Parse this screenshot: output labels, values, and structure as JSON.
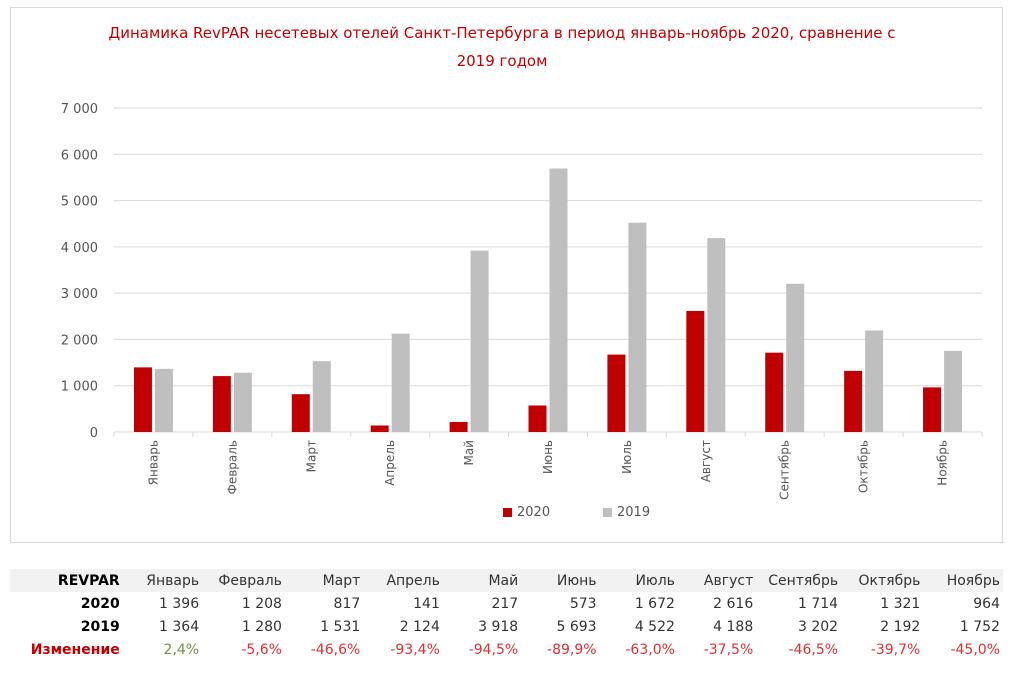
{
  "chart_data": {
    "type": "bar",
    "title": "Динамика RevPAR несетевых отелей Санкт-Петербурга в период январь-ноябрь 2020, сравнение с 2019 годом",
    "title_lines": [
      "Динамика RevPAR несетевых отелей Санкт-Петербурга в период январь-ноябрь 2020, сравнение с",
      "2019 годом"
    ],
    "categories": [
      "Январь",
      "Февраль",
      "Март",
      "Апрель",
      "Май",
      "Июнь",
      "Июль",
      "Август",
      "Сентябрь",
      "Октябрь",
      "Ноябрь"
    ],
    "series": [
      {
        "name": "2020",
        "color": "#c00000",
        "values": [
          1396,
          1208,
          817,
          141,
          217,
          573,
          1672,
          2616,
          1714,
          1321,
          964
        ]
      },
      {
        "name": "2019",
        "color": "#bfbfbf",
        "values": [
          1364,
          1280,
          1531,
          2124,
          3918,
          5693,
          4522,
          4188,
          3202,
          2192,
          1752
        ]
      }
    ],
    "ylim": [
      0,
      7000
    ],
    "yticks": [
      "0",
      "1 000",
      "2 000",
      "3 000",
      "4 000",
      "5 000",
      "6 000",
      "7 000"
    ],
    "grid": true,
    "legend_position": "bottom",
    "xlabel": "",
    "ylabel": ""
  },
  "table": {
    "header_label": "REVPAR",
    "months": [
      "Январь",
      "Февраль",
      "Март",
      "Апрель",
      "Май",
      "Июнь",
      "Июль",
      "Август",
      "Сентябрь",
      "Октябрь",
      "Ноябрь"
    ],
    "rows": [
      {
        "label": "2020",
        "cells": [
          "1 396",
          "1 208",
          "817",
          "141",
          "217",
          "573",
          "1 672",
          "2 616",
          "1 714",
          "1 321",
          "964"
        ]
      },
      {
        "label": "2019",
        "cells": [
          "1 364",
          "1 280",
          "1 531",
          "2 124",
          "3 918",
          "5 693",
          "4 522",
          "4 188",
          "3 202",
          "2 192",
          "1 752"
        ]
      }
    ],
    "change_row": {
      "label": "Изменение",
      "cells": [
        "2,4%",
        "-5,6%",
        "-46,6%",
        "-93,4%",
        "-94,5%",
        "-89,9%",
        "-63,0%",
        "-37,5%",
        "-46,5%",
        "-39,7%",
        "-45,0%"
      ]
    }
  },
  "colors": {
    "positive": "#76923c",
    "negative": "#e03030",
    "title": "#c00000"
  }
}
